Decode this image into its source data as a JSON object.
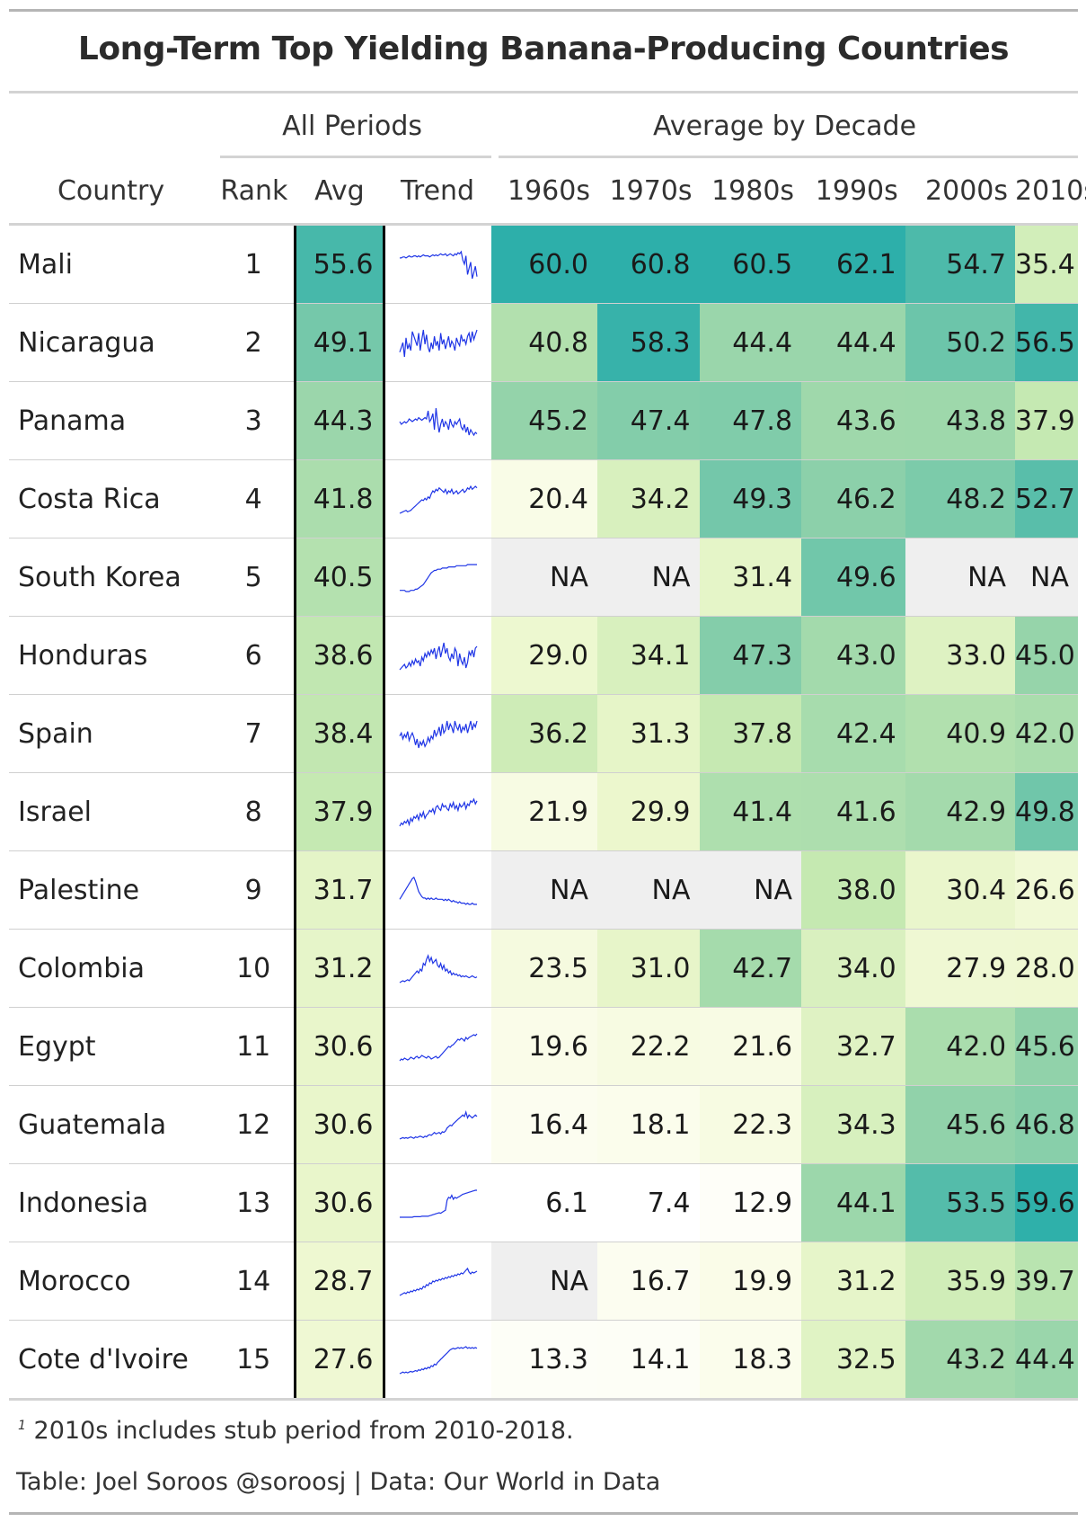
{
  "title": "Long-Term Top Yielding Banana-Producing Countries",
  "spanners": {
    "all_periods": "All Periods",
    "average_by_decade": "Average by Decade"
  },
  "columns": {
    "country": "Country",
    "rank": "Rank",
    "avg": "Avg",
    "trend": "Trend",
    "decades": [
      "1960s",
      "1970s",
      "1980s",
      "1990s",
      "2000s",
      "2010s"
    ],
    "footnote_mark": "1"
  },
  "rows": [
    {
      "country": "Mali",
      "rank": "1",
      "avg": "55.6",
      "decades": [
        "60.0",
        "60.8",
        "60.5",
        "62.1",
        "54.7",
        "35.4"
      ],
      "trend": [
        54,
        54,
        55,
        55,
        54,
        55,
        56,
        55,
        55,
        56,
        56,
        55,
        56,
        55,
        56,
        57,
        56,
        56,
        56,
        55,
        56,
        57,
        56,
        57,
        56,
        57,
        58,
        57,
        57,
        58,
        56,
        57,
        58,
        57,
        56,
        58,
        57,
        59,
        58,
        60,
        52,
        48,
        56,
        38,
        44,
        50,
        34,
        40,
        46,
        36
      ]
    },
    {
      "country": "Nicaragua",
      "rank": "2",
      "avg": "49.1",
      "decades": [
        "40.8",
        "58.3",
        "44.4",
        "44.4",
        "50.2",
        "56.5"
      ],
      "trend": [
        36,
        42,
        48,
        30,
        54,
        40,
        46,
        38,
        62,
        56,
        50,
        44,
        60,
        38,
        52,
        64,
        46,
        58,
        42,
        36,
        48,
        40,
        56,
        44,
        50,
        38,
        60,
        46,
        52,
        40,
        48,
        56,
        42,
        50,
        46,
        38,
        54,
        48,
        44,
        58,
        50,
        52,
        46,
        56,
        60,
        48,
        62,
        52,
        58,
        64
      ]
    },
    {
      "country": "Panama",
      "rank": "3",
      "avg": "44.3",
      "decades": [
        "45.2",
        "47.4",
        "47.8",
        "43.6",
        "43.8",
        "37.9"
      ],
      "trend": [
        46,
        44,
        45,
        46,
        45,
        46,
        48,
        47,
        46,
        47,
        48,
        47,
        49,
        48,
        47,
        48,
        49,
        48,
        54,
        46,
        48,
        52,
        40,
        56,
        46,
        38,
        44,
        48,
        42,
        46,
        44,
        40,
        48,
        44,
        42,
        46,
        44,
        46,
        48,
        42,
        40,
        44,
        38,
        42,
        36,
        40,
        38,
        36,
        38,
        37
      ]
    },
    {
      "country": "Costa Rica",
      "rank": "4",
      "avg": "41.8",
      "decades": [
        "20.4",
        "34.2",
        "49.3",
        "46.2",
        "48.2",
        "52.7"
      ],
      "trend": [
        18,
        19,
        20,
        21,
        22,
        20,
        21,
        22,
        24,
        26,
        28,
        30,
        32,
        34,
        36,
        35,
        38,
        36,
        40,
        38,
        44,
        48,
        46,
        50,
        48,
        52,
        50,
        48,
        46,
        50,
        44,
        48,
        46,
        50,
        44,
        46,
        48,
        44,
        46,
        48,
        50,
        46,
        48,
        52,
        50,
        54,
        50,
        52,
        54,
        52
      ]
    },
    {
      "country": "South Korea",
      "rank": "5",
      "avg": "40.5",
      "decades": [
        "NA",
        "NA",
        "31.4",
        "49.6",
        "NA",
        "NA"
      ],
      "trend": [
        31,
        31,
        31,
        31,
        30,
        30,
        30,
        31,
        31,
        31,
        32,
        32,
        33,
        34,
        35,
        36,
        38,
        40,
        42,
        44,
        46,
        47,
        48,
        48,
        49,
        49,
        49,
        50,
        50,
        50,
        50,
        51,
        51,
        51,
        51,
        51,
        52,
        52,
        52,
        52,
        52,
        52,
        52,
        53,
        53,
        53,
        53,
        53,
        53,
        53
      ]
    },
    {
      "country": "Honduras",
      "rank": "6",
      "avg": "38.6",
      "decades": [
        "29.0",
        "34.1",
        "47.3",
        "43.0",
        "33.0",
        "45.0"
      ],
      "trend": [
        26,
        28,
        30,
        32,
        28,
        30,
        34,
        30,
        36,
        32,
        38,
        34,
        36,
        30,
        40,
        36,
        44,
        40,
        46,
        42,
        48,
        44,
        50,
        38,
        46,
        52,
        40,
        48,
        56,
        44,
        50,
        40,
        36,
        44,
        38,
        50,
        46,
        30,
        44,
        36,
        32,
        40,
        28,
        34,
        46,
        42,
        48,
        40,
        50,
        52
      ]
    },
    {
      "country": "Spain",
      "rank": "7",
      "avg": "38.4",
      "decades": [
        "36.2",
        "31.3",
        "37.8",
        "42.4",
        "40.9",
        "42.0"
      ],
      "trend": [
        36,
        38,
        34,
        37,
        35,
        39,
        33,
        36,
        38,
        35,
        30,
        34,
        28,
        32,
        30,
        33,
        29,
        31,
        35,
        32,
        36,
        34,
        40,
        36,
        38,
        42,
        36,
        44,
        38,
        40,
        46,
        40,
        44,
        42,
        38,
        46,
        42,
        40,
        44,
        38,
        42,
        40,
        44,
        38,
        42,
        46,
        40,
        44,
        42,
        46
      ]
    },
    {
      "country": "Israel",
      "rank": "8",
      "avg": "37.9",
      "decades": [
        "21.9",
        "29.9",
        "41.4",
        "41.6",
        "42.9",
        "49.8"
      ],
      "trend": [
        18,
        22,
        20,
        24,
        22,
        26,
        20,
        28,
        24,
        30,
        28,
        32,
        26,
        34,
        30,
        36,
        28,
        32,
        34,
        38,
        36,
        40,
        34,
        42,
        44,
        40,
        38,
        46,
        42,
        44,
        40,
        38,
        46,
        42,
        48,
        40,
        44,
        38,
        46,
        42,
        44,
        48,
        40,
        46,
        44,
        50,
        48,
        52,
        46,
        50
      ]
    },
    {
      "country": "Palestine",
      "rank": "9",
      "avg": "31.7",
      "decades": [
        "NA",
        "NA",
        "NA",
        "38.0",
        "30.4",
        "26.6"
      ],
      "trend": [
        30,
        32,
        34,
        36,
        38,
        40,
        42,
        44,
        46,
        47,
        44,
        40,
        36,
        34,
        32,
        31,
        31,
        30,
        31,
        30,
        31,
        30,
        30,
        31,
        30,
        30,
        30,
        30,
        29,
        30,
        29,
        30,
        29,
        28,
        29,
        28,
        28,
        27,
        28,
        27,
        27,
        27,
        26,
        27,
        26,
        26,
        27,
        26,
        26,
        26
      ]
    },
    {
      "country": "Colombia",
      "rank": "10",
      "avg": "31.2",
      "decades": [
        "23.5",
        "31.0",
        "42.7",
        "34.0",
        "27.9",
        "28.0"
      ],
      "trend": [
        22,
        23,
        24,
        23,
        24,
        25,
        24,
        26,
        28,
        30,
        32,
        34,
        32,
        36,
        34,
        42,
        40,
        46,
        50,
        44,
        48,
        42,
        44,
        46,
        40,
        38,
        42,
        36,
        40,
        34,
        36,
        32,
        34,
        30,
        32,
        30,
        31,
        29,
        30,
        28,
        29,
        28,
        29,
        28,
        27,
        28,
        29,
        28,
        27,
        28
      ]
    },
    {
      "country": "Egypt",
      "rank": "11",
      "avg": "30.6",
      "decades": [
        "19.6",
        "22.2",
        "21.6",
        "32.7",
        "42.0",
        "45.6"
      ],
      "trend": [
        18,
        20,
        19,
        21,
        20,
        19,
        20,
        22,
        21,
        20,
        22,
        23,
        21,
        22,
        24,
        23,
        22,
        21,
        23,
        22,
        20,
        21,
        22,
        23,
        21,
        22,
        24,
        26,
        28,
        30,
        32,
        34,
        33,
        35,
        36,
        38,
        40,
        42,
        41,
        43,
        42,
        40,
        44,
        42,
        44,
        45,
        46,
        47,
        46,
        48
      ]
    },
    {
      "country": "Guatemala",
      "rank": "12",
      "avg": "30.6",
      "decades": [
        "16.4",
        "18.1",
        "22.3",
        "34.3",
        "45.6",
        "46.8"
      ],
      "trend": [
        15,
        16,
        17,
        16,
        17,
        16,
        17,
        18,
        17,
        16,
        18,
        17,
        18,
        19,
        18,
        17,
        19,
        18,
        20,
        21,
        20,
        22,
        24,
        22,
        23,
        24,
        22,
        25,
        24,
        26,
        30,
        32,
        34,
        33,
        36,
        38,
        40,
        42,
        44,
        46,
        48,
        46,
        52,
        44,
        48,
        46,
        44,
        46,
        48,
        46
      ]
    },
    {
      "country": "Indonesia",
      "rank": "13",
      "avg": "30.6",
      "decades": [
        "6.1",
        "7.4",
        "12.9",
        "44.1",
        "53.5",
        "59.6"
      ],
      "trend": [
        6,
        6,
        6,
        6,
        6,
        6,
        6,
        6,
        6,
        7,
        7,
        7,
        7,
        7,
        8,
        8,
        8,
        8,
        8,
        9,
        10,
        11,
        12,
        13,
        14,
        15,
        14,
        16,
        18,
        20,
        40,
        46,
        44,
        50,
        42,
        46,
        44,
        46,
        48,
        50,
        52,
        53,
        54,
        55,
        56,
        57,
        58,
        59,
        60,
        60
      ]
    },
    {
      "country": "Morocco",
      "rank": "14",
      "avg": "28.7",
      "decades": [
        "NA",
        "16.7",
        "19.9",
        "31.2",
        "35.9",
        "39.7"
      ],
      "trend": [
        14,
        15,
        16,
        17,
        16,
        18,
        17,
        19,
        18,
        20,
        19,
        21,
        20,
        22,
        21,
        24,
        23,
        26,
        25,
        28,
        27,
        30,
        29,
        31,
        30,
        32,
        31,
        33,
        32,
        34,
        33,
        35,
        34,
        36,
        35,
        37,
        36,
        38,
        37,
        39,
        38,
        40,
        42,
        44,
        40,
        38,
        40,
        39,
        40,
        41
      ]
    },
    {
      "country": "Cote d'Ivoire",
      "rank": "15",
      "avg": "27.6",
      "decades": [
        "13.3",
        "14.1",
        "18.3",
        "32.5",
        "43.2",
        "44.4"
      ],
      "trend": [
        12,
        13,
        14,
        13,
        14,
        13,
        14,
        15,
        14,
        15,
        16,
        15,
        17,
        16,
        18,
        17,
        19,
        18,
        20,
        19,
        22,
        21,
        24,
        23,
        26,
        28,
        30,
        32,
        34,
        36,
        38,
        40,
        42,
        43,
        44,
        43,
        44,
        45,
        44,
        45,
        44,
        45,
        46,
        44,
        45,
        44,
        45,
        44,
        45,
        44
      ]
    }
  ],
  "footnote": "2010s includes stub period from 2010-2018.",
  "source": "Table: Joel Soroos @soroosj | Data: Our World in Data"
}
